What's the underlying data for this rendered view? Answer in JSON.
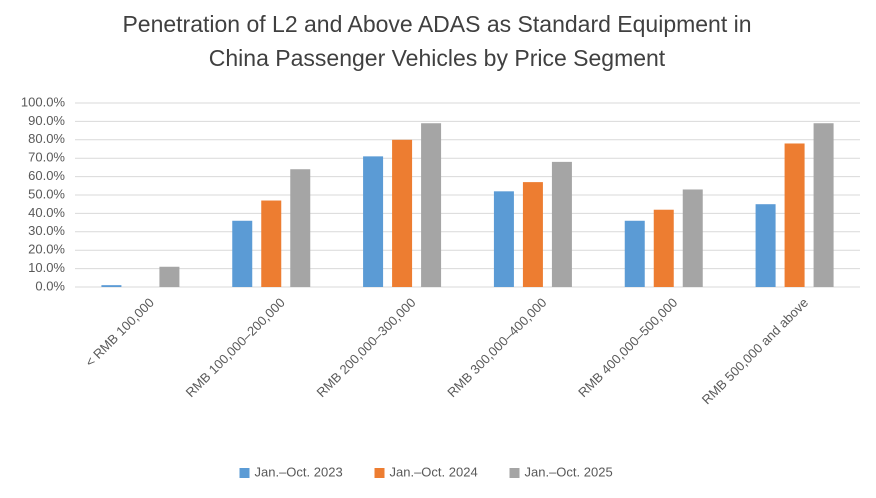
{
  "chart_data": {
    "type": "bar",
    "title": [
      "Penetration of L2 and Above ADAS as Standard Equipment in",
      "China Passenger Vehicles by Price Segment"
    ],
    "categories": [
      "< RMB 100,000",
      "RMB 100,000–200,000",
      "RMB 200,000–300,000",
      "RMB 300,000–400,000",
      "RMB 400,000–500,000",
      "RMB 500,000 and above"
    ],
    "series": [
      {
        "name": "Jan.–Oct. 2023",
        "color": "#5b9bd5",
        "values": [
          1,
          36,
          71,
          52,
          36,
          45
        ]
      },
      {
        "name": "Jan.–Oct. 2024",
        "color": "#ed7d31",
        "values": [
          0,
          47,
          80,
          57,
          42,
          78
        ]
      },
      {
        "name": "Jan.–Oct. 2025",
        "color": "#a5a5a5",
        "values": [
          11,
          64,
          89,
          68,
          53,
          89
        ]
      }
    ],
    "ylim": [
      0,
      100
    ],
    "yticks": [
      {
        "value": 0,
        "label": "0.0%"
      },
      {
        "value": 10,
        "label": "10.0%"
      },
      {
        "value": 20,
        "label": "20.0%"
      },
      {
        "value": 30,
        "label": "30.0%"
      },
      {
        "value": 40,
        "label": "40.0%"
      },
      {
        "value": 50,
        "label": "50.0%"
      },
      {
        "value": 60,
        "label": "60.0%"
      },
      {
        "value": 70,
        "label": "70.0%"
      },
      {
        "value": 80,
        "label": "80.0%"
      },
      {
        "value": 90,
        "label": "90.0%"
      },
      {
        "value": 100,
        "label": "100.0%"
      }
    ],
    "grid": true,
    "legend": "bottom"
  }
}
